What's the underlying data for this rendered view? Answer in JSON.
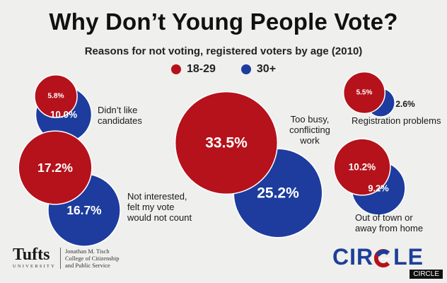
{
  "colors": {
    "young": "#b5121b",
    "older": "#1d3c9e"
  },
  "chart_data": {
    "type": "bubble",
    "title": "Why Don’t Young People Vote?",
    "subtitle": "Reasons for not voting, registered voters by age (2010)",
    "series": [
      {
        "name": "18-29",
        "color": "#b5121b"
      },
      {
        "name": "30+",
        "color": "#1d3c9e"
      }
    ],
    "categories": [
      {
        "label": "Didn’t like\ncandidates",
        "young": 5.8,
        "older": 10.0,
        "young_label": "5.8%",
        "older_label": "10.0%"
      },
      {
        "label": "Not interested,\nfelt my vote\nwould not count",
        "young": 17.2,
        "older": 16.7,
        "young_label": "17.2%",
        "older_label": "16.7%"
      },
      {
        "label": "Too busy,\nconflicting\nwork",
        "young": 33.5,
        "older": 25.2,
        "young_label": "33.5%",
        "older_label": "25.2%"
      },
      {
        "label": "Registration problems",
        "young": 5.5,
        "older": 2.6,
        "young_label": "5.5%",
        "older_label": "2.6%"
      },
      {
        "label": "Out of town or\naway from home",
        "young": 10.2,
        "older": 9.2,
        "young_label": "10.2%",
        "older_label": "9.2%"
      }
    ]
  },
  "footer": {
    "tufts_wordmark": "Tufts",
    "tufts_university": "UNIVERSITY",
    "tisch_text": "Jonathan M. Tisch\nCollege of Citizenship\nand Public Service",
    "circle_left": "CIR",
    "circle_right": "LE",
    "circle_tag": "CIRCLE"
  }
}
